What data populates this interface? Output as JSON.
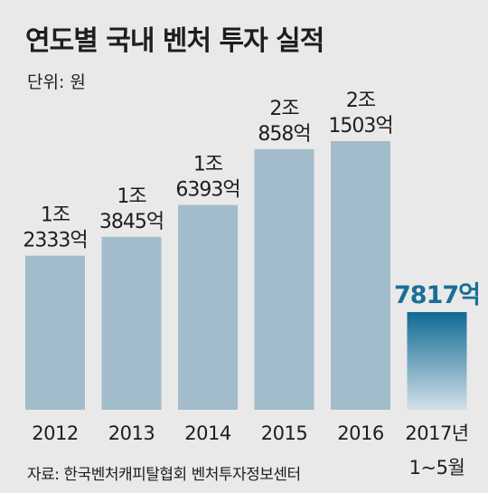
{
  "chart_data": {
    "type": "bar",
    "title": "연도별 국내 벤처 투자 실적",
    "unit": "단위: 원",
    "source": "자료: 한국벤처캐피탈협회 벤처투자정보센터",
    "categories": [
      "2012",
      "2013",
      "2014",
      "2015",
      "2016",
      "2017년"
    ],
    "category_sublabels": [
      "",
      "",
      "",
      "",
      "",
      "1~5월"
    ],
    "values": [
      12333,
      13845,
      16393,
      20858,
      21503,
      7817
    ],
    "value_unit": "억",
    "data_labels": [
      [
        "1조",
        "2333억"
      ],
      [
        "1조",
        "3845억"
      ],
      [
        "1조",
        "6393억"
      ],
      [
        "2조",
        "858억"
      ],
      [
        "2조",
        "1503억"
      ],
      [
        "7817억"
      ]
    ],
    "highlight_index": 5,
    "ylim": [
      0,
      21503
    ],
    "colors": {
      "bar": "#a3bccb",
      "highlight_top": "#0f6a94",
      "highlight_bottom": "#d3e0e8",
      "highlight_label": "#1a6f95",
      "background": "#e9e9ea"
    }
  }
}
